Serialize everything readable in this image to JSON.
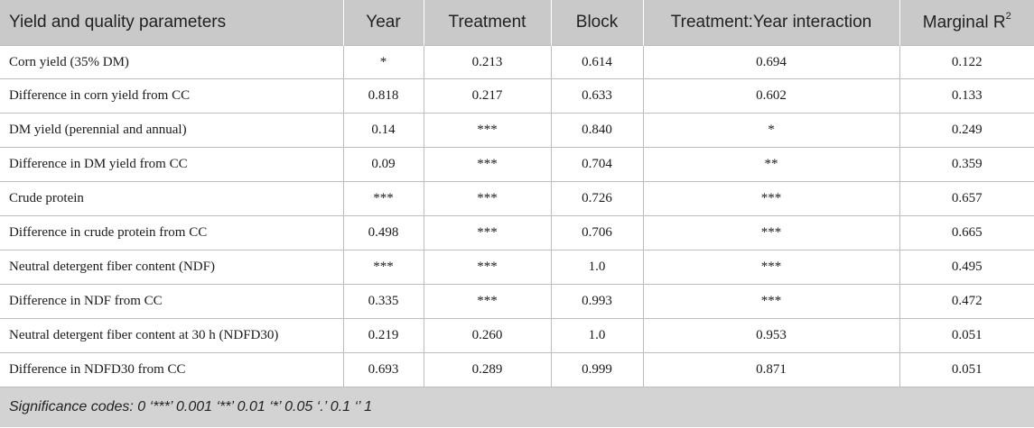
{
  "table": {
    "headers": [
      "Yield and quality parameters",
      "Year",
      "Treatment",
      "Block",
      "Treatment:Year interaction",
      "Marginal R"
    ],
    "header_last_sup": "2",
    "rows": [
      [
        "Corn yield (35% DM)",
        "*",
        "0.213",
        "0.614",
        "0.694",
        "0.122"
      ],
      [
        "Difference in corn yield from CC",
        "0.818",
        "0.217",
        "0.633",
        "0.602",
        "0.133"
      ],
      [
        "DM yield (perennial and annual)",
        "0.14",
        "***",
        "0.840",
        "*",
        "0.249"
      ],
      [
        "Difference in DM yield from CC",
        "0.09",
        "***",
        "0.704",
        "**",
        "0.359"
      ],
      [
        "Crude protein",
        "***",
        "***",
        "0.726",
        "***",
        "0.657"
      ],
      [
        "Difference in crude protein from CC",
        "0.498",
        "***",
        "0.706",
        "***",
        "0.665"
      ],
      [
        "Neutral detergent fiber content (NDF)",
        "***",
        "***",
        "1.0",
        "***",
        "0.495"
      ],
      [
        "Difference in NDF from CC",
        "0.335",
        "***",
        "0.993",
        "***",
        "0.472"
      ],
      [
        "Neutral detergent fiber content at 30 h (NDFD30)",
        "0.219",
        "0.260",
        "1.0",
        "0.953",
        "0.051"
      ],
      [
        "Difference in NDFD30 from CC",
        "0.693",
        "0.289",
        "0.999",
        "0.871",
        "0.051"
      ]
    ],
    "footnote": "Significance codes: 0 ‘***’ 0.001 ‘**’ 0.01 ‘*’ 0.05 ‘.’ 0.1 ‘’ 1"
  }
}
